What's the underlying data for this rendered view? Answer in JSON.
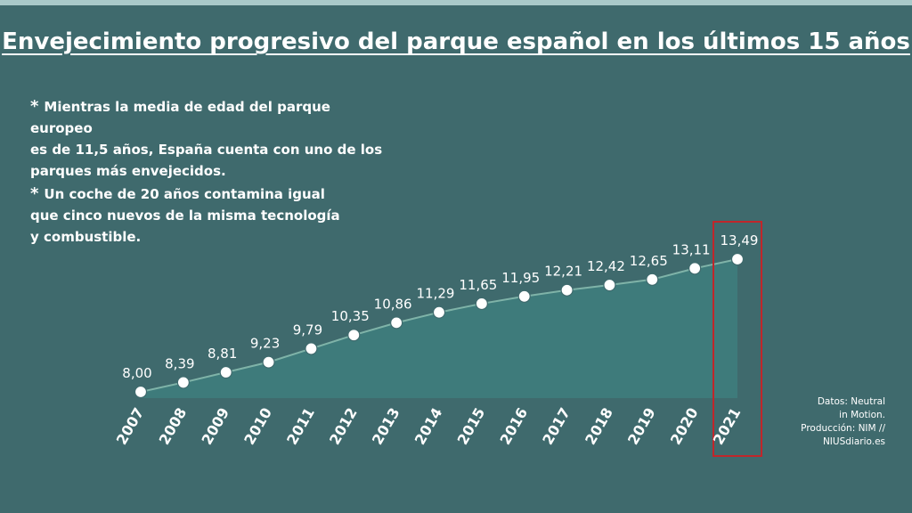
{
  "title": "Envejecimiento progresivo del parque español en los últimos 15 años",
  "notes": {
    "star": "*",
    "note1_lines": [
      "Mientras la media de edad del parque europeo",
      "es de 11,5 años, España cuenta con uno de los",
      "parques más envejecidos."
    ],
    "note2_lines": [
      "Un coche de 20 años contamina igual",
      "que cinco nuevos de la misma tecnología",
      "y combustible."
    ]
  },
  "credits": {
    "line1": "Datos: Neutral",
    "line2": "in Motion.",
    "line3": "Producción: NIM //",
    "line4": "NIUSdiario.es"
  },
  "colors": {
    "background": "#3f6a6d",
    "area_fill": "#3e7c7c",
    "line": "#7fb3a8",
    "marker": "#ffffff",
    "highlight_box": "#c0262b"
  },
  "chart_data": {
    "type": "area",
    "title": "Envejecimiento progresivo del parque español en los últimos 15 años",
    "xlabel": "",
    "ylabel": "",
    "categories": [
      "2007",
      "2008",
      "2009",
      "2010",
      "2011",
      "2012",
      "2013",
      "2014",
      "2015",
      "2016",
      "2017",
      "2018",
      "2019",
      "2020",
      "2021"
    ],
    "values": [
      8.0,
      8.39,
      8.81,
      9.23,
      9.79,
      10.35,
      10.86,
      11.29,
      11.65,
      11.95,
      12.21,
      12.42,
      12.65,
      13.11,
      13.49
    ],
    "data_labels": [
      "8,00",
      "8,39",
      "8,81",
      "9,23",
      "9,79",
      "10,35",
      "10,86",
      "11,29",
      "11,65",
      "11,95",
      "12,21",
      "12,42",
      "12,65",
      "13,11",
      "13,49"
    ],
    "highlight_category": "2021",
    "grid": false,
    "legend": "none"
  }
}
